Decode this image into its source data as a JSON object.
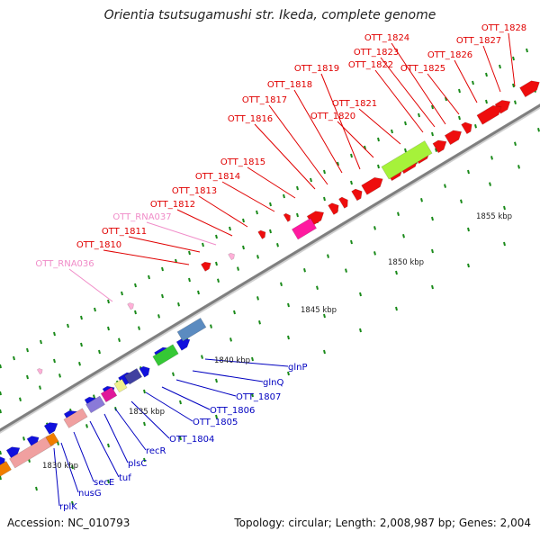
{
  "title": "Orientia tsutsugamushi str. Ikeda, complete genome",
  "footer": {
    "accession": "Accession: NC_010793",
    "summary": "Topology: circular; Length: 2,008,987 bp; Genes: 2,004"
  },
  "colors": {
    "upper_label": "#e00000",
    "rna_label": "#f08cc8",
    "lower_label": "#0000c0",
    "tick": "#1a8a1a",
    "backbone": "#8a8a8a"
  },
  "scale_labels": [
    "1830 kbp",
    "1835 kbp",
    "1840 kbp",
    "1845 kbp",
    "1850 kbp",
    "1855 kbp"
  ],
  "upper_genes": [
    {
      "label": "OTT_1828",
      "color": "red"
    },
    {
      "label": "OTT_1827",
      "color": "red"
    },
    {
      "label": "OTT_1826",
      "color": "red"
    },
    {
      "label": "OTT_1825",
      "color": "red"
    },
    {
      "label": "OTT_1824",
      "color": "red"
    },
    {
      "label": "OTT_1823",
      "color": "red"
    },
    {
      "label": "OTT_1822",
      "color": "red"
    },
    {
      "label": "OTT_1821",
      "color": "red"
    },
    {
      "label": "OTT_1820",
      "color": "red"
    },
    {
      "label": "OTT_1819",
      "color": "red"
    },
    {
      "label": "OTT_1818",
      "color": "red"
    },
    {
      "label": "OTT_1817",
      "color": "red"
    },
    {
      "label": "OTT_1816",
      "color": "red"
    },
    {
      "label": "OTT_1815",
      "color": "red"
    },
    {
      "label": "OTT_1814",
      "color": "red"
    },
    {
      "label": "OTT_1813",
      "color": "red"
    },
    {
      "label": "OTT_1812",
      "color": "red"
    },
    {
      "label": "OTT_RNA037",
      "color": "pink"
    },
    {
      "label": "OTT_1811",
      "color": "red"
    },
    {
      "label": "OTT_1810",
      "color": "red"
    },
    {
      "label": "OTT_RNA036",
      "color": "pink"
    }
  ],
  "lower_genes": [
    {
      "label": "glnP"
    },
    {
      "label": "glnQ"
    },
    {
      "label": "OTT_1807"
    },
    {
      "label": "OTT_1806"
    },
    {
      "label": "OTT_1805"
    },
    {
      "label": "OTT_1804"
    },
    {
      "label": "recR"
    },
    {
      "label": "plsC"
    },
    {
      "label": "tuf"
    },
    {
      "label": "secE"
    },
    {
      "label": "nusG"
    },
    {
      "label": "rplK"
    }
  ]
}
